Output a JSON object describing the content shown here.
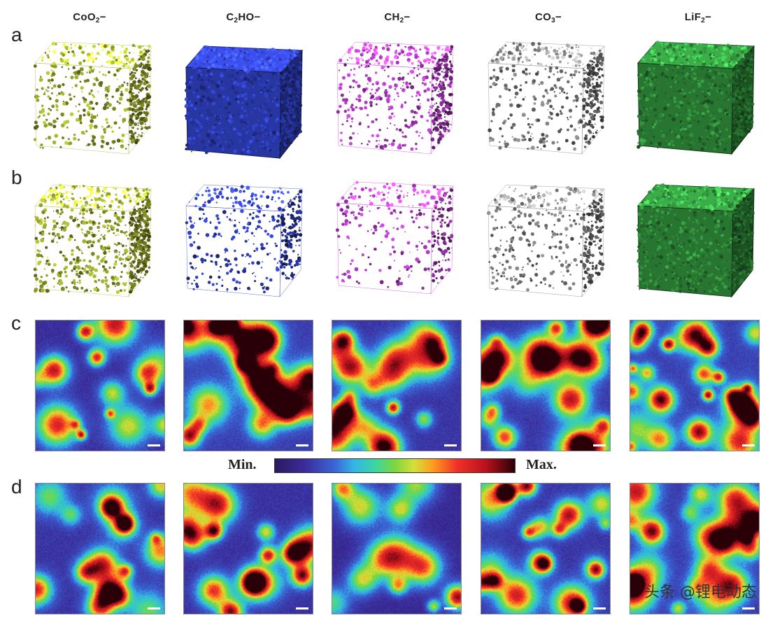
{
  "columns": [
    {
      "main": "CoO",
      "sub": "2",
      "suffix": "−"
    },
    {
      "main": "C",
      "sub": "2",
      "suffix": "HO−"
    },
    {
      "main": "CH",
      "sub": "2",
      "suffix": "−"
    },
    {
      "main": "CO",
      "sub": "3",
      "suffix": "−"
    },
    {
      "main": "LiF",
      "sub": "2",
      "suffix": "−"
    }
  ],
  "rows": {
    "a": "a",
    "b": "b",
    "c": "c",
    "d": "d"
  },
  "scale": {
    "min_label": "Min.",
    "max_label": "Max."
  },
  "colors": {
    "CoO2": "#9aa82a",
    "C2HO": "#2f3fbf",
    "CH2": "#b43cc8",
    "CO3": "#7a7a7a",
    "LiF2": "#2f8a3a"
  },
  "watermark": "头条 @锂电动态"
}
